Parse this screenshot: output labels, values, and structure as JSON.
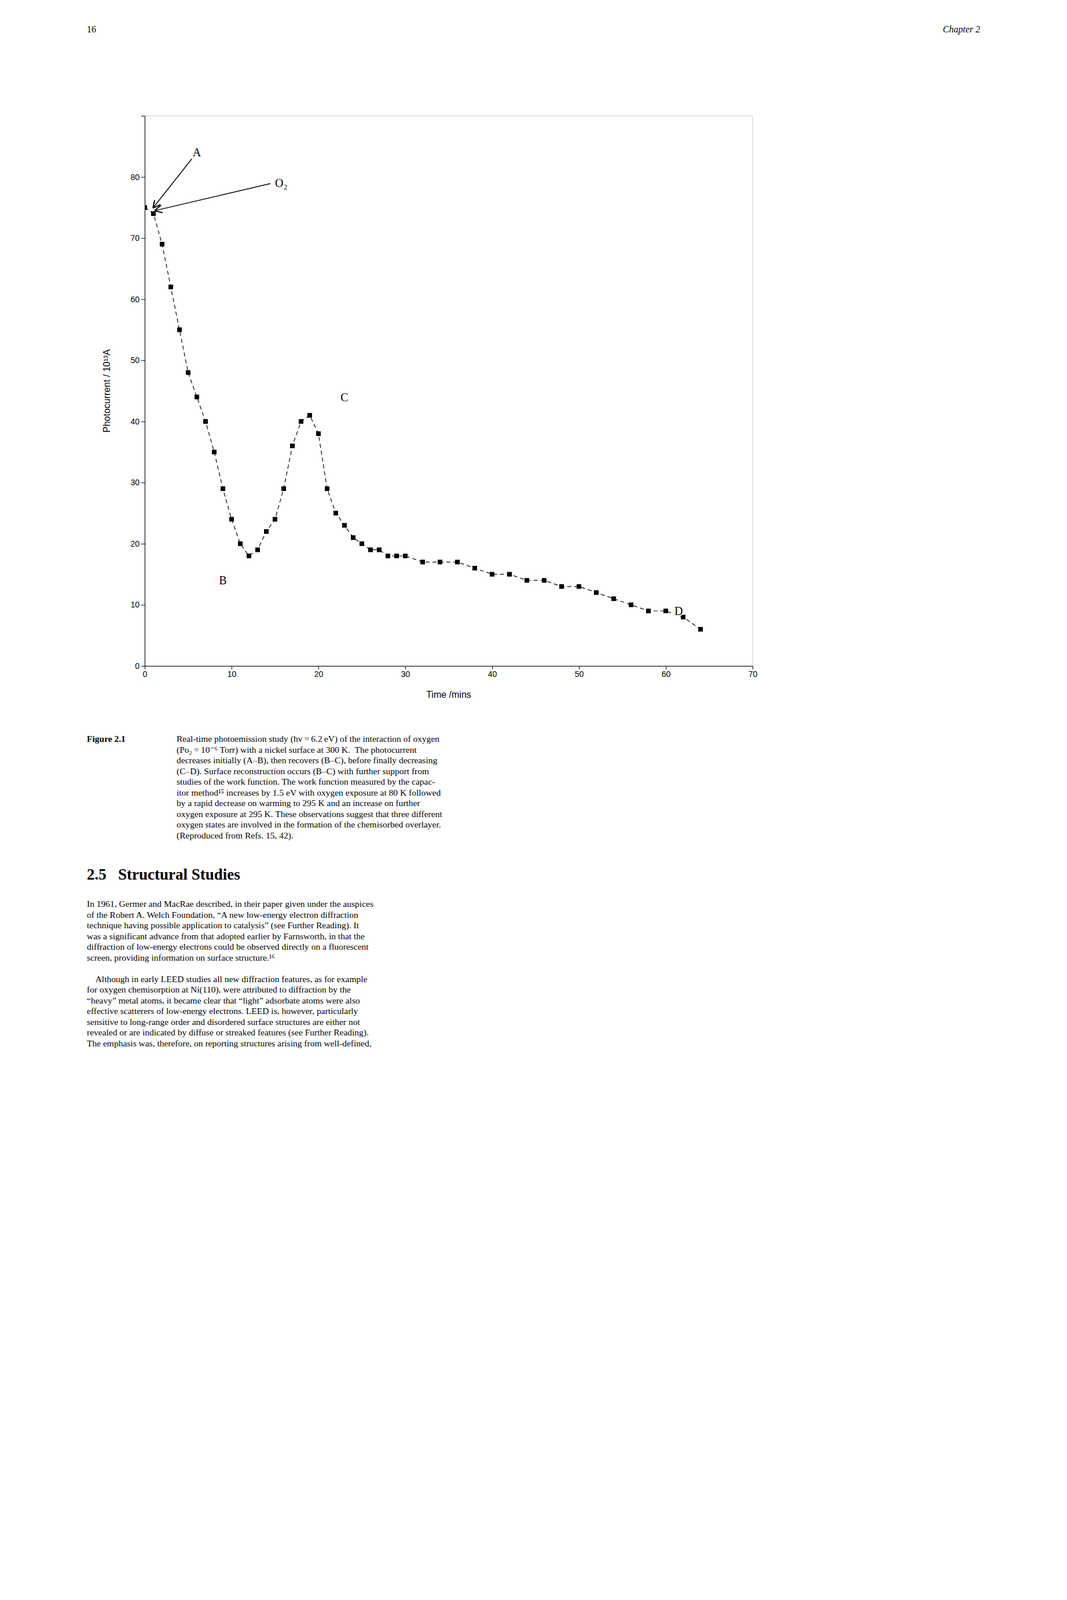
{
  "header": {
    "page_number": "16",
    "chapter": "Chapter 2"
  },
  "chart_data": {
    "type": "line",
    "x_label": "Time /mins",
    "y_label": "Photocurrent / 10¹³A",
    "xlim": [
      0,
      70
    ],
    "ylim": [
      0,
      90
    ],
    "xticks": [
      0,
      10,
      20,
      30,
      40,
      50,
      60,
      70
    ],
    "yticks": [
      0,
      10,
      20,
      30,
      40,
      50,
      60,
      70,
      80
    ],
    "x": [
      0,
      1,
      2,
      3,
      4,
      5,
      6,
      7,
      8,
      9,
      10,
      11,
      12,
      13,
      14,
      15,
      16,
      17,
      18,
      19,
      20,
      21,
      22,
      23,
      24,
      25,
      26,
      27,
      28,
      29,
      30,
      32,
      34,
      36,
      38,
      40,
      42,
      44,
      46,
      48,
      50,
      52,
      54,
      56,
      58,
      60,
      62,
      64
    ],
    "values": [
      75,
      74,
      69,
      62,
      55,
      48,
      44,
      40,
      35,
      29,
      24,
      20,
      18,
      19,
      22,
      24,
      29,
      36,
      40,
      41,
      38,
      29,
      25,
      23,
      21,
      20,
      19,
      19,
      18,
      18,
      18,
      17,
      17,
      17,
      16,
      15,
      15,
      14,
      14,
      13,
      13,
      12,
      11,
      10,
      9,
      9,
      8,
      6
    ],
    "color": "#000000",
    "marker": "square",
    "line_style": "dashed",
    "grid": false,
    "annotations": [
      {
        "text": "A",
        "x": 6,
        "y": 84,
        "arrow_x": 1.0,
        "arrow_y": 75
      },
      {
        "text": "O₂",
        "x": 15,
        "y": 79,
        "arrow_x": 1.2,
        "arrow_y": 74.5
      },
      {
        "text": "B",
        "x": 9,
        "y": 14
      },
      {
        "text": "C",
        "x": 23,
        "y": 44
      },
      {
        "text": "D",
        "x": 61,
        "y": 9
      }
    ]
  },
  "caption": {
    "label": "Figure 2.1",
    "lines": [
      "Real-time photoemission study (hv = 6.2 eV) of the interaction of oxygen",
      "(Po₂ = 10⁻⁶ Torr) with a nickel surface at 300 K. The photocurrent",
      "decreases initially (A–B), then recovers (B–C), before finally decreasing",
      "(C–D). Surface reconstruction occurs (B–C) with further support from",
      "studies of the work function. The work function measured by the capac-",
      "itor method¹⁵ increases by 1.5 eV with oxygen exposure at 80 K followed",
      "by a rapid decrease on warming to 295 K and an increase on further",
      "oxygen exposure at 295 K. These observations suggest that three different",
      "oxygen states are involved in the formation of the chemisorbed overlayer.",
      "(Reproduced from Refs. 15, 42)."
    ]
  },
  "section_heading": "2.5   Structural Studies",
  "body": [
    [
      "In 1961, Germer and MacRae described, in their paper given under the auspices",
      "of the Robert A. Welch Foundation, “A new low-energy electron diffraction",
      "technique having possible application to catalysis” (see Further Reading). It",
      "was a significant advance from that adopted earlier by Farnsworth, in that the",
      "diffraction of low-energy electrons could be observed directly on a fluorescent",
      "screen, providing information on surface structure.¹⁶"
    ],
    [
      "    Although in early LEED studies all new diffraction features, as for example",
      "for oxygen chemisorption at Ni(110), were attributed to diffraction by the",
      "“heavy” metal atoms, it became clear that “light” adsorbate atoms were also",
      "effective scatterers of low-energy electrons. LEED is, however, particularly",
      "sensitive to long-range order and disordered surface structures are either not",
      "revealed or are indicated by diffuse or streaked features (see Further Reading).",
      "The emphasis was, therefore, on reporting structures arising from well-defined,"
    ]
  ]
}
